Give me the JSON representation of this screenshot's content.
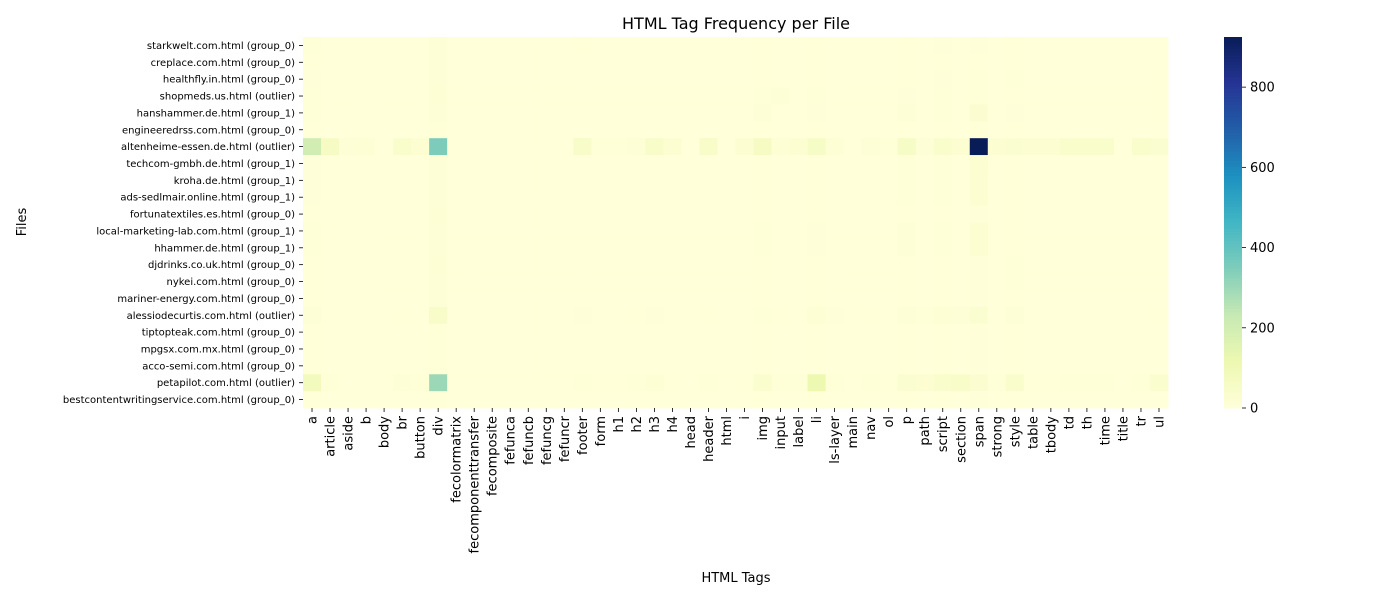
{
  "chart_data": {
    "type": "heatmap",
    "title": "HTML Tag Frequency per File",
    "xlabel": "HTML Tags",
    "ylabel": "Files",
    "x_categories": [
      "a",
      "article",
      "aside",
      "b",
      "body",
      "br",
      "button",
      "div",
      "fecolormatrix",
      "fecomponenttransfer",
      "fecomposite",
      "fefunca",
      "fefuncb",
      "fefuncg",
      "fefuncr",
      "footer",
      "form",
      "h1",
      "h2",
      "h3",
      "h4",
      "head",
      "header",
      "html",
      "i",
      "img",
      "input",
      "label",
      "li",
      "ls-layer",
      "main",
      "nav",
      "ol",
      "p",
      "path",
      "script",
      "section",
      "span",
      "strong",
      "style",
      "table",
      "tbody",
      "td",
      "th",
      "time",
      "title",
      "tr",
      "ul"
    ],
    "y_categories": [
      "starkwelt.com.html (group_0)",
      "creplace.com.html (group_0)",
      "healthfly.in.html (group_0)",
      "shopmeds.us.html (outlier)",
      "hanshammer.de.html (group_1)",
      "engineeredrss.com.html (group_0)",
      "altenheime-essen.de.html (outlier)",
      "techcom-gmbh.de.html (group_1)",
      "kroha.de.html (group_1)",
      "ads-sedlmair.online.html (group_1)",
      "fortunatextiles.es.html (group_0)",
      "local-marketing-lab.com.html (group_1)",
      "hhammer.de.html (group_1)",
      "djdrinks.co.uk.html (group_0)",
      "nykei.com.html (group_0)",
      "mariner-energy.com.html (group_0)",
      "alessiodecurtis.com.html (outlier)",
      "tiptopteak.com.html (group_0)",
      "mpgsx.com.mx.html (group_0)",
      "acco-semi.com.html (group_0)",
      "petapilot.com.html (outlier)",
      "bestcontentwritingservice.com.html (group_0)"
    ],
    "values": [
      [
        5,
        1,
        0,
        0,
        1,
        0,
        1,
        12,
        1,
        1,
        1,
        1,
        1,
        1,
        1,
        2,
        0,
        0,
        0,
        1,
        0,
        1,
        1,
        1,
        0,
        2,
        0,
        0,
        2,
        0,
        0,
        1,
        0,
        2,
        0,
        4,
        0,
        4,
        0,
        3,
        0,
        0,
        0,
        0,
        0,
        1,
        0,
        1
      ],
      [
        3,
        0,
        0,
        0,
        1,
        0,
        0,
        10,
        0,
        0,
        0,
        0,
        0,
        0,
        0,
        1,
        0,
        0,
        0,
        1,
        0,
        1,
        0,
        1,
        0,
        2,
        0,
        0,
        2,
        0,
        0,
        1,
        0,
        2,
        0,
        3,
        0,
        3,
        0,
        2,
        0,
        0,
        0,
        0,
        0,
        1,
        0,
        1
      ],
      [
        4,
        0,
        0,
        0,
        1,
        0,
        0,
        12,
        0,
        0,
        0,
        0,
        0,
        0,
        0,
        1,
        0,
        0,
        0,
        1,
        0,
        1,
        0,
        1,
        0,
        3,
        0,
        0,
        3,
        0,
        0,
        1,
        0,
        3,
        0,
        4,
        0,
        5,
        0,
        6,
        0,
        0,
        0,
        0,
        0,
        1,
        0,
        2
      ],
      [
        5,
        0,
        0,
        0,
        1,
        1,
        0,
        15,
        0,
        0,
        0,
        0,
        0,
        0,
        0,
        1,
        0,
        0,
        0,
        1,
        0,
        1,
        0,
        1,
        0,
        6,
        12,
        0,
        5,
        0,
        0,
        1,
        0,
        4,
        0,
        5,
        0,
        8,
        0,
        3,
        0,
        0,
        0,
        0,
        0,
        1,
        0,
        3
      ],
      [
        6,
        0,
        0,
        0,
        1,
        0,
        0,
        10,
        0,
        0,
        0,
        0,
        0,
        0,
        0,
        1,
        0,
        0,
        0,
        1,
        0,
        1,
        0,
        1,
        0,
        10,
        0,
        0,
        4,
        0,
        0,
        1,
        0,
        12,
        0,
        8,
        0,
        25,
        0,
        4,
        0,
        0,
        0,
        0,
        0,
        1,
        0,
        2
      ],
      [
        3,
        0,
        0,
        0,
        1,
        0,
        0,
        8,
        0,
        0,
        0,
        0,
        0,
        0,
        0,
        1,
        0,
        0,
        0,
        1,
        0,
        1,
        0,
        1,
        0,
        2,
        0,
        0,
        2,
        0,
        0,
        1,
        0,
        2,
        0,
        3,
        0,
        5,
        0,
        2,
        0,
        0,
        0,
        0,
        0,
        1,
        0,
        1
      ],
      [
        200,
        60,
        10,
        15,
        1,
        40,
        20,
        350,
        0,
        0,
        0,
        0,
        0,
        0,
        0,
        50,
        5,
        8,
        10,
        45,
        20,
        1,
        50,
        1,
        20,
        60,
        15,
        20,
        55,
        15,
        1,
        10,
        5,
        55,
        10,
        40,
        20,
        925,
        20,
        30,
        20,
        20,
        40,
        40,
        40,
        1,
        40,
        30
      ],
      [
        4,
        0,
        0,
        0,
        1,
        0,
        0,
        10,
        0,
        0,
        0,
        0,
        0,
        0,
        0,
        1,
        0,
        0,
        0,
        1,
        0,
        1,
        0,
        1,
        0,
        3,
        0,
        0,
        3,
        0,
        0,
        1,
        0,
        5,
        0,
        5,
        0,
        22,
        0,
        3,
        0,
        0,
        0,
        0,
        0,
        1,
        0,
        1
      ],
      [
        4,
        0,
        0,
        0,
        1,
        0,
        0,
        10,
        0,
        0,
        0,
        0,
        0,
        0,
        0,
        1,
        0,
        0,
        0,
        1,
        0,
        1,
        0,
        1,
        0,
        3,
        0,
        0,
        3,
        0,
        0,
        1,
        0,
        5,
        0,
        5,
        0,
        20,
        0,
        3,
        0,
        0,
        0,
        0,
        0,
        1,
        0,
        1
      ],
      [
        4,
        0,
        0,
        0,
        1,
        0,
        0,
        10,
        0,
        0,
        0,
        0,
        0,
        0,
        0,
        1,
        0,
        0,
        0,
        1,
        0,
        1,
        0,
        1,
        0,
        3,
        0,
        0,
        3,
        0,
        0,
        1,
        0,
        5,
        0,
        5,
        0,
        20,
        0,
        3,
        0,
        0,
        0,
        0,
        0,
        1,
        0,
        1
      ],
      [
        3,
        0,
        0,
        0,
        1,
        0,
        0,
        15,
        0,
        0,
        0,
        0,
        0,
        0,
        0,
        1,
        0,
        0,
        0,
        1,
        0,
        1,
        0,
        1,
        0,
        2,
        0,
        0,
        2,
        0,
        0,
        1,
        0,
        2,
        0,
        3,
        0,
        4,
        0,
        2,
        0,
        0,
        0,
        0,
        0,
        1,
        0,
        1
      ],
      [
        5,
        0,
        0,
        0,
        1,
        0,
        0,
        12,
        0,
        0,
        0,
        0,
        0,
        0,
        0,
        1,
        0,
        0,
        0,
        1,
        0,
        1,
        0,
        1,
        0,
        8,
        0,
        0,
        4,
        0,
        0,
        1,
        0,
        10,
        0,
        6,
        0,
        22,
        0,
        3,
        0,
        0,
        0,
        0,
        0,
        1,
        0,
        1
      ],
      [
        5,
        0,
        0,
        0,
        1,
        0,
        0,
        12,
        0,
        0,
        0,
        0,
        0,
        0,
        0,
        1,
        0,
        0,
        0,
        1,
        0,
        1,
        0,
        1,
        0,
        8,
        0,
        0,
        4,
        0,
        0,
        1,
        0,
        10,
        0,
        6,
        0,
        22,
        0,
        3,
        0,
        0,
        0,
        0,
        0,
        1,
        0,
        1
      ],
      [
        3,
        0,
        0,
        0,
        1,
        0,
        0,
        14,
        0,
        0,
        0,
        0,
        0,
        0,
        0,
        1,
        0,
        0,
        0,
        1,
        0,
        1,
        0,
        1,
        0,
        2,
        0,
        0,
        2,
        0,
        0,
        1,
        0,
        2,
        0,
        3,
        0,
        4,
        0,
        6,
        0,
        0,
        0,
        0,
        0,
        1,
        0,
        1
      ],
      [
        3,
        0,
        0,
        0,
        1,
        0,
        0,
        12,
        0,
        0,
        0,
        0,
        0,
        0,
        0,
        1,
        0,
        0,
        0,
        1,
        0,
        1,
        0,
        1,
        0,
        2,
        0,
        0,
        2,
        0,
        0,
        1,
        0,
        2,
        0,
        3,
        0,
        4,
        0,
        6,
        0,
        0,
        0,
        0,
        0,
        1,
        0,
        1
      ],
      [
        3,
        0,
        0,
        0,
        1,
        0,
        0,
        10,
        0,
        0,
        0,
        0,
        0,
        0,
        0,
        1,
        0,
        0,
        0,
        1,
        0,
        1,
        0,
        1,
        0,
        2,
        0,
        0,
        2,
        0,
        0,
        1,
        0,
        2,
        0,
        3,
        0,
        4,
        0,
        2,
        0,
        0,
        0,
        0,
        0,
        1,
        0,
        1
      ],
      [
        12,
        0,
        0,
        0,
        1,
        3,
        0,
        50,
        0,
        0,
        0,
        0,
        0,
        0,
        0,
        4,
        0,
        0,
        2,
        4,
        0,
        1,
        2,
        1,
        0,
        6,
        2,
        0,
        15,
        4,
        1,
        3,
        0,
        10,
        5,
        16,
        12,
        30,
        0,
        12,
        0,
        0,
        0,
        0,
        0,
        1,
        0,
        3
      ],
      [
        3,
        0,
        0,
        0,
        1,
        0,
        0,
        8,
        0,
        0,
        0,
        0,
        0,
        0,
        0,
        1,
        0,
        0,
        0,
        1,
        0,
        1,
        0,
        1,
        0,
        2,
        0,
        0,
        2,
        0,
        0,
        1,
        0,
        2,
        0,
        3,
        0,
        4,
        0,
        2,
        0,
        0,
        0,
        0,
        0,
        1,
        0,
        1
      ],
      [
        3,
        0,
        0,
        0,
        1,
        0,
        0,
        8,
        0,
        0,
        0,
        0,
        0,
        0,
        0,
        1,
        0,
        0,
        0,
        1,
        0,
        1,
        0,
        1,
        0,
        2,
        0,
        0,
        2,
        0,
        0,
        1,
        0,
        2,
        0,
        3,
        0,
        4,
        0,
        2,
        0,
        0,
        0,
        0,
        0,
        1,
        0,
        1
      ],
      [
        3,
        0,
        0,
        0,
        1,
        0,
        0,
        8,
        0,
        0,
        0,
        0,
        0,
        0,
        0,
        1,
        0,
        0,
        0,
        1,
        0,
        1,
        0,
        1,
        0,
        2,
        0,
        0,
        2,
        0,
        0,
        1,
        0,
        2,
        0,
        3,
        0,
        4,
        0,
        2,
        0,
        0,
        0,
        0,
        0,
        1,
        0,
        1
      ],
      [
        80,
        5,
        0,
        0,
        1,
        10,
        5,
        300,
        0,
        0,
        0,
        0,
        0,
        0,
        0,
        5,
        3,
        2,
        8,
        15,
        3,
        1,
        5,
        1,
        3,
        35,
        5,
        5,
        115,
        5,
        1,
        5,
        2,
        30,
        20,
        40,
        45,
        25,
        5,
        40,
        3,
        3,
        5,
        5,
        5,
        1,
        5,
        35
      ],
      [
        3,
        0,
        0,
        0,
        1,
        0,
        0,
        8,
        0,
        0,
        0,
        0,
        0,
        0,
        0,
        1,
        0,
        0,
        0,
        1,
        0,
        1,
        0,
        1,
        0,
        2,
        0,
        0,
        2,
        0,
        0,
        1,
        0,
        2,
        0,
        3,
        0,
        4,
        0,
        2,
        0,
        0,
        0,
        0,
        0,
        1,
        0,
        1
      ]
    ],
    "vmin": 0,
    "vmax": 925,
    "colormap": "YlGnBu",
    "colorbar_ticks": [
      0,
      200,
      400,
      600,
      800
    ],
    "grid": false
  }
}
